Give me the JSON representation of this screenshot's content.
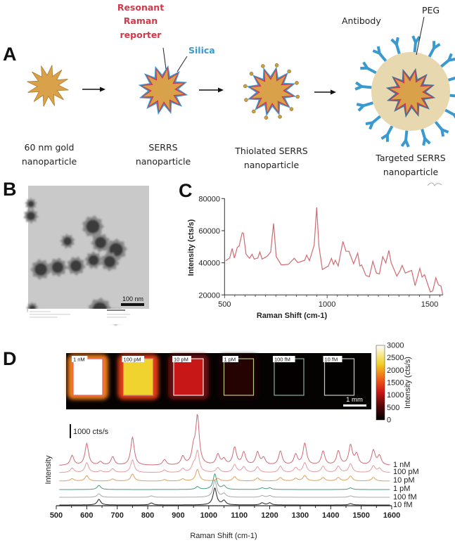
{
  "panel_a": {
    "label": "A",
    "annotations": {
      "reporter": [
        "Resonant",
        "Raman",
        "reporter"
      ],
      "silica": "Silica",
      "antibody": "Antibody",
      "peg": "PEG"
    },
    "colors": {
      "gold": "#d9a24a",
      "reporter": "#d03a4a",
      "silica": "#3a9ad0",
      "peg": "#e8d8b0",
      "antibody": "#3a9ad0"
    },
    "steps": [
      {
        "caption": [
          "60 nm gold",
          "nanoparticle"
        ]
      },
      {
        "caption": [
          "SERRS",
          "nanoparticle"
        ]
      },
      {
        "caption": [
          "Thiolated SERRS",
          "nanoparticle"
        ]
      },
      {
        "caption": [
          "Targeted SERRS",
          "nanoparticle"
        ]
      }
    ]
  },
  "panel_b": {
    "label": "B",
    "scale_bar": "100 nm"
  },
  "chart_data": [
    {
      "panel": "C",
      "type": "line",
      "xlabel": "Raman Shift (cm-1)",
      "ylabel": "Intensity (cts/s)",
      "xlim": [
        500,
        1570
      ],
      "ylim": [
        20000,
        80000
      ],
      "xticks": [
        500,
        1000,
        1500
      ],
      "yticks": [
        20000,
        40000,
        60000,
        80000
      ],
      "grid": false,
      "color": "#d06a70",
      "x": [
        505,
        525,
        537,
        548,
        562,
        571,
        586,
        592,
        605,
        622,
        634,
        645,
        662,
        672,
        683,
        708,
        725,
        739,
        752,
        777,
        811,
        840,
        857,
        891,
        900,
        914,
        937,
        949,
        960,
        977,
        1006,
        1021,
        1031,
        1040,
        1054,
        1077,
        1092,
        1106,
        1129,
        1149,
        1160,
        1168,
        1189,
        1206,
        1223,
        1240,
        1255,
        1271,
        1286,
        1301,
        1312,
        1340,
        1355,
        1366,
        1381,
        1412,
        1429,
        1452,
        1463,
        1475,
        1503,
        1515,
        1530,
        1543,
        1555,
        1564
      ],
      "y": [
        41300,
        43000,
        48900,
        43000,
        49600,
        50400,
        58700,
        58400,
        45300,
        42800,
        45300,
        42300,
        43000,
        46700,
        42300,
        44100,
        46700,
        64500,
        43800,
        38700,
        39000,
        42800,
        40100,
        41600,
        44800,
        41300,
        51100,
        74500,
        50400,
        35800,
        38000,
        42800,
        39000,
        41600,
        38000,
        53300,
        47200,
        47200,
        39400,
        46000,
        38000,
        38700,
        32100,
        31400,
        40900,
        33600,
        33100,
        43800,
        39900,
        47700,
        40100,
        31700,
        35000,
        38400,
        33600,
        35300,
        25800,
        36500,
        31100,
        32600,
        21900,
        22600,
        30700,
        26300,
        25500,
        20000
      ]
    },
    {
      "panel": "D-image",
      "type": "heatmap",
      "colorbar_label": "Intensity (cts/s)",
      "colorbar_range": [
        0,
        3000
      ],
      "colorbar_ticks": [
        0,
        500,
        1000,
        1500,
        2000,
        2500,
        3000
      ],
      "scale_bar": "1 mm",
      "wells": [
        {
          "label": "1 nM",
          "intensity": 3000,
          "outline": "#e06070"
        },
        {
          "label": "100 pM",
          "intensity": 2300,
          "outline": "#c88a90"
        },
        {
          "label": "10 pM",
          "intensity": 1100,
          "outline": "#e8e8e8"
        },
        {
          "label": "1 pM",
          "intensity": 250,
          "outline": "#b8c880"
        },
        {
          "label": "100 fM",
          "intensity": 30,
          "outline": "#8ab0a0"
        },
        {
          "label": "10 fM",
          "intensity": 20,
          "outline": "#c8c8c8"
        }
      ]
    },
    {
      "panel": "D-spectra",
      "type": "line",
      "xlabel": "Raman Shift (cm-1)",
      "ylabel": "Intensity",
      "xlim": [
        500,
        1600
      ],
      "xticks": [
        500,
        600,
        700,
        800,
        900,
        1000,
        1100,
        1200,
        1300,
        1400,
        1500,
        1600
      ],
      "scale_bar": "1000 cts/s",
      "series": [
        {
          "name": "1 nM",
          "color": "#cf6a78",
          "offset": 0,
          "peaks": [
            [
              552,
              700
            ],
            [
              600,
              1550
            ],
            [
              645,
              250
            ],
            [
              685,
              600
            ],
            [
              750,
              2000
            ],
            [
              855,
              400
            ],
            [
              915,
              600
            ],
            [
              950,
              1000
            ],
            [
              963,
              3400
            ],
            [
              1030,
              750
            ],
            [
              1050,
              400
            ],
            [
              1085,
              1250
            ],
            [
              1115,
              900
            ],
            [
              1160,
              900
            ],
            [
              1180,
              500
            ],
            [
              1235,
              1000
            ],
            [
              1285,
              750
            ],
            [
              1315,
              1550
            ],
            [
              1375,
              1000
            ],
            [
              1425,
              1000
            ],
            [
              1465,
              1400
            ],
            [
              1485,
              750
            ],
            [
              1540,
              1050
            ],
            [
              1560,
              650
            ]
          ]
        },
        {
          "name": "100 pM",
          "color": "#e39ca4",
          "offset": -500,
          "peaks": [
            [
              552,
              320
            ],
            [
              600,
              700
            ],
            [
              645,
              120
            ],
            [
              685,
              270
            ],
            [
              750,
              900
            ],
            [
              855,
              180
            ],
            [
              915,
              270
            ],
            [
              950,
              450
            ],
            [
              963,
              1500
            ],
            [
              1030,
              340
            ],
            [
              1085,
              560
            ],
            [
              1115,
              400
            ],
            [
              1160,
              400
            ],
            [
              1235,
              450
            ],
            [
              1285,
              340
            ],
            [
              1315,
              700
            ],
            [
              1375,
              450
            ],
            [
              1425,
              450
            ],
            [
              1465,
              630
            ],
            [
              1540,
              470
            ],
            [
              1560,
              290
            ]
          ]
        },
        {
          "name": "10 pM",
          "color": "#e0a060",
          "offset": -1100,
          "peaks": [
            [
              552,
              170
            ],
            [
              600,
              380
            ],
            [
              685,
              150
            ],
            [
              750,
              500
            ],
            [
              855,
              100
            ],
            [
              915,
              150
            ],
            [
              963,
              830
            ],
            [
              1030,
              190
            ],
            [
              1085,
              310
            ],
            [
              1160,
              220
            ],
            [
              1235,
              250
            ],
            [
              1285,
              190
            ],
            [
              1315,
              390
            ],
            [
              1375,
              250
            ],
            [
              1425,
              250
            ],
            [
              1465,
              350
            ],
            [
              1540,
              260
            ]
          ]
        },
        {
          "name": "1 pM",
          "color": "#4a9a80",
          "offset": -1700,
          "peaks": [
            [
              640,
              300
            ],
            [
              963,
              200
            ],
            [
              1020,
              1100
            ],
            [
              1050,
              250
            ],
            [
              1175,
              120
            ],
            [
              1200,
              120
            ],
            [
              1465,
              120
            ]
          ]
        },
        {
          "name": "100 fM",
          "color": "#a8a8a8",
          "offset": -2250,
          "peaks": [
            [
              640,
              250
            ],
            [
              812,
              100
            ],
            [
              1020,
              1200
            ],
            [
              1050,
              250
            ],
            [
              1175,
              120
            ],
            [
              1200,
              120
            ],
            [
              1465,
              100
            ]
          ]
        },
        {
          "name": "10 fM",
          "color": "#222222",
          "offset": -2800,
          "peaks": [
            [
              640,
              400
            ],
            [
              812,
              150
            ],
            [
              1020,
              1200
            ],
            [
              1050,
              300
            ],
            [
              1175,
              150
            ],
            [
              1200,
              150
            ],
            [
              1465,
              100
            ]
          ]
        }
      ]
    }
  ],
  "panel_c": {
    "label": "C"
  },
  "panel_d": {
    "label": "D"
  }
}
